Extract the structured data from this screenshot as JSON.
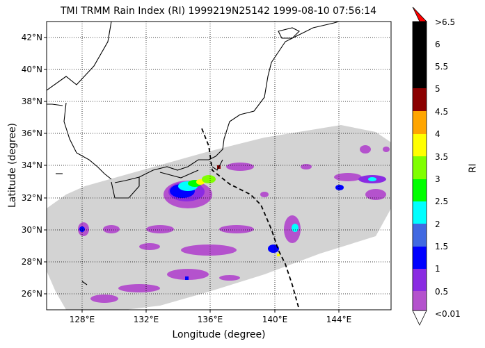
{
  "figure": {
    "title": "TMI TRMM Rain Index (RI) 1999219N25142 1999-08-10 07:56:14",
    "xlabel": "Longitude (degree)",
    "ylabel": "Latitude (degree)"
  },
  "map": {
    "lon_range": [
      126,
      147.5
    ],
    "lat_range": [
      25,
      43
    ],
    "lon_ticks": [
      "128°E",
      "132°E",
      "136°E",
      "140°E",
      "144°E"
    ],
    "lat_ticks": [
      "26°N",
      "28°N",
      "30°N",
      "32°N",
      "34°N",
      "36°N",
      "38°N",
      "40°N",
      "42°N"
    ],
    "gridlines": true,
    "swath_color": "#d3d3d3",
    "track_style": "dashed black"
  },
  "colorbar": {
    "label": "RI",
    "tick_labels": [
      "<0.01",
      "0.5",
      "1",
      "1.5",
      "2",
      "2.5",
      "3",
      "3.5",
      "4",
      "4.5",
      "5",
      "5.5",
      "6",
      ">6.5"
    ],
    "colors": [
      "#b452cd",
      "#8a2be2",
      "#0000ff",
      "#4169e1",
      "#00ffff",
      "#00ff00",
      "#7fff00",
      "#ffff00",
      "#ffa500",
      "#8b0000",
      "#000000",
      "#000000",
      "#000000"
    ],
    "under_color": "#ffffff",
    "over_color": "#ff0000"
  }
}
